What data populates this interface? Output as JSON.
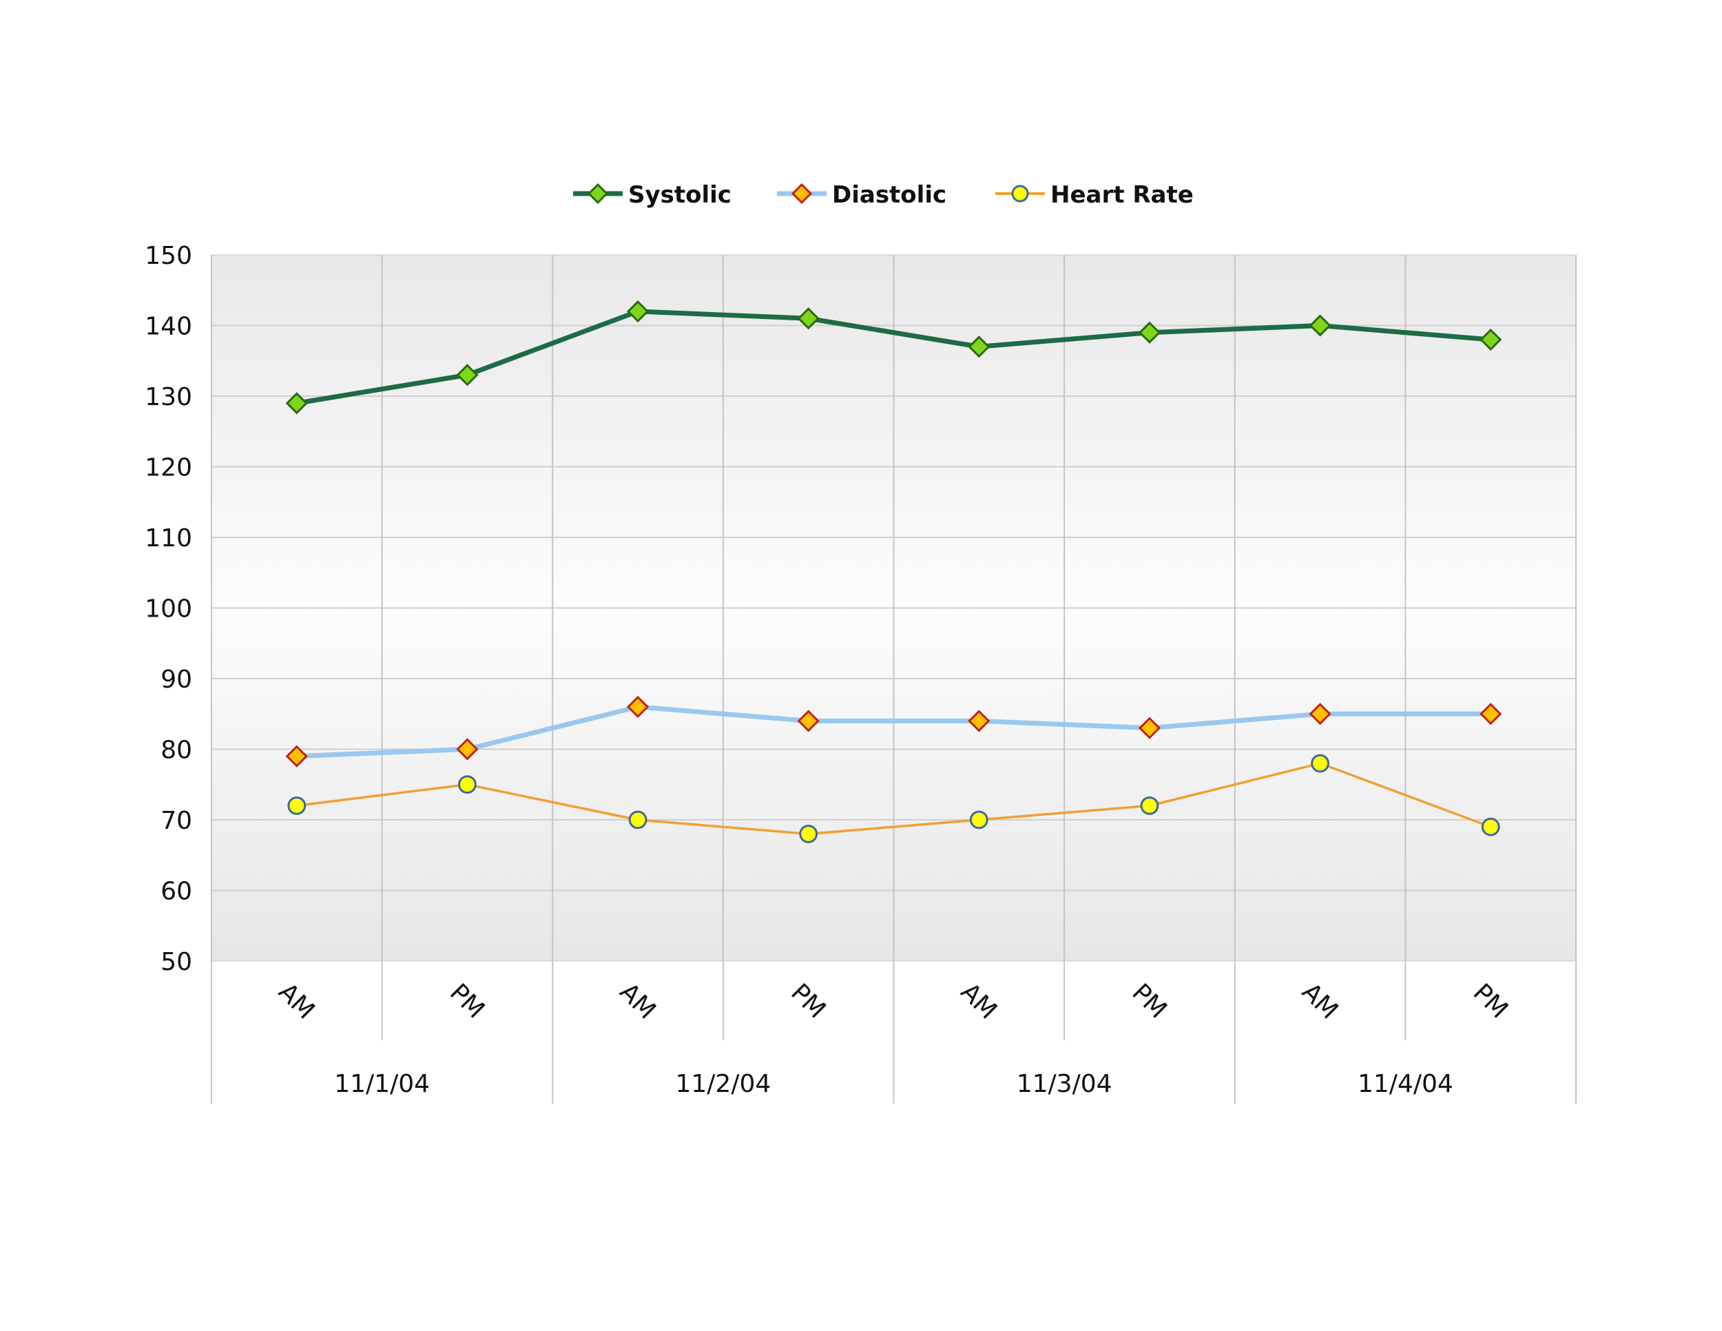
{
  "chart_data": {
    "type": "line",
    "title": "",
    "xlabel": "",
    "ylabel": "",
    "ylim": [
      50,
      150
    ],
    "yticks": [
      50,
      60,
      70,
      80,
      90,
      100,
      110,
      120,
      130,
      140,
      150
    ],
    "grid": true,
    "legend_position": "top-center",
    "categories": [
      "AM",
      "PM",
      "AM",
      "PM",
      "AM",
      "PM",
      "AM",
      "PM"
    ],
    "groups": [
      "11/1/04",
      "11/2/04",
      "11/3/04",
      "11/4/04"
    ],
    "series": [
      {
        "name": "Systolic",
        "values": [
          129,
          133,
          142,
          141,
          137,
          139,
          140,
          138
        ],
        "color": "#1e6b48",
        "marker": "diamond",
        "marker_fill": "#7fd51a",
        "marker_stroke": "#2a6a10"
      },
      {
        "name": "Diastolic",
        "values": [
          79,
          80,
          86,
          84,
          84,
          83,
          85,
          85
        ],
        "color": "#99c8f0",
        "marker": "diamond",
        "marker_fill": "#ffc000",
        "marker_stroke": "#c0201a"
      },
      {
        "name": "Heart Rate",
        "values": [
          72,
          75,
          70,
          68,
          70,
          72,
          78,
          69
        ],
        "color": "#f0a030",
        "marker": "circle",
        "marker_fill": "#ffff00",
        "marker_stroke": "#3a6aa0"
      }
    ]
  }
}
